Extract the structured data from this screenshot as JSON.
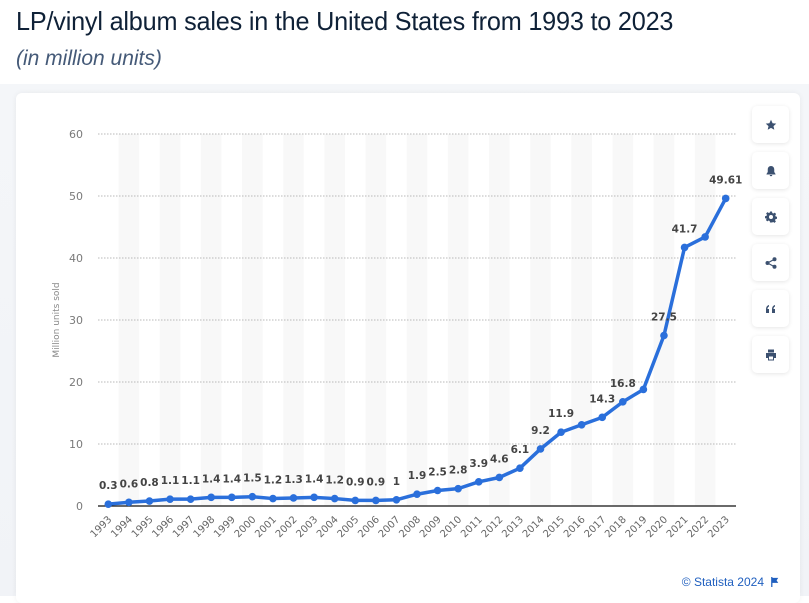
{
  "header": {
    "title": "LP/vinyl album sales in the United States from 1993 to 2023",
    "subtitle": "(in million units)"
  },
  "sidebar": {
    "buttons": [
      {
        "name": "favorite",
        "icon": "star-icon"
      },
      {
        "name": "notification",
        "icon": "bell-icon"
      },
      {
        "name": "settings",
        "icon": "gear-icon"
      },
      {
        "name": "share",
        "icon": "share-icon"
      },
      {
        "name": "cite",
        "icon": "quote-icon"
      },
      {
        "name": "print",
        "icon": "printer-icon"
      }
    ]
  },
  "footer": {
    "credit": "© Statista 2024",
    "icon": "flag-icon"
  },
  "colors": {
    "line": "#2a6fdb",
    "title": "#0f2137",
    "accent": "#1f5fbf"
  },
  "chart_data": {
    "type": "line",
    "title": "LP/vinyl album sales in the United States from 1993 to 2023",
    "subtitle": "(in million units)",
    "xlabel": "",
    "ylabel": "Million units sold",
    "ylim": [
      0,
      60
    ],
    "yticks": [
      0,
      10,
      20,
      30,
      40,
      50,
      60
    ],
    "grid": true,
    "legend": "none",
    "categories": [
      "1993",
      "1994",
      "1995",
      "1996",
      "1997",
      "1998",
      "1999",
      "2000",
      "2001",
      "2002",
      "2003",
      "2004",
      "2005",
      "2006",
      "2007",
      "2008",
      "2009",
      "2010",
      "2011",
      "2012",
      "2013",
      "2014",
      "2015",
      "2016",
      "2017",
      "2018",
      "2019",
      "2020",
      "2021",
      "2022",
      "2023"
    ],
    "series": [
      {
        "name": "LP/vinyl album sales",
        "values": [
          0.3,
          0.6,
          0.8,
          1.1,
          1.1,
          1.4,
          1.4,
          1.5,
          1.2,
          1.3,
          1.4,
          1.2,
          0.9,
          0.9,
          1,
          1.9,
          2.5,
          2.8,
          3.9,
          4.6,
          6.1,
          9.2,
          11.9,
          13.1,
          14.3,
          16.8,
          18.8,
          27.5,
          41.7,
          43.4,
          49.61
        ],
        "labels": [
          "0.3",
          "0.6",
          "0.8",
          "1.1",
          "1.1",
          "1.4",
          "1.4",
          "1.5",
          "1.2",
          "1.3",
          "1.4",
          "1.2",
          "0.9",
          "0.9",
          "1",
          "1.9",
          "2.5",
          "2.8",
          "3.9",
          "4.6",
          "6.1",
          "9.2",
          "11.9",
          "",
          "14.3",
          "16.8",
          "",
          "27.5",
          "41.7",
          "",
          "49.61"
        ]
      }
    ]
  }
}
